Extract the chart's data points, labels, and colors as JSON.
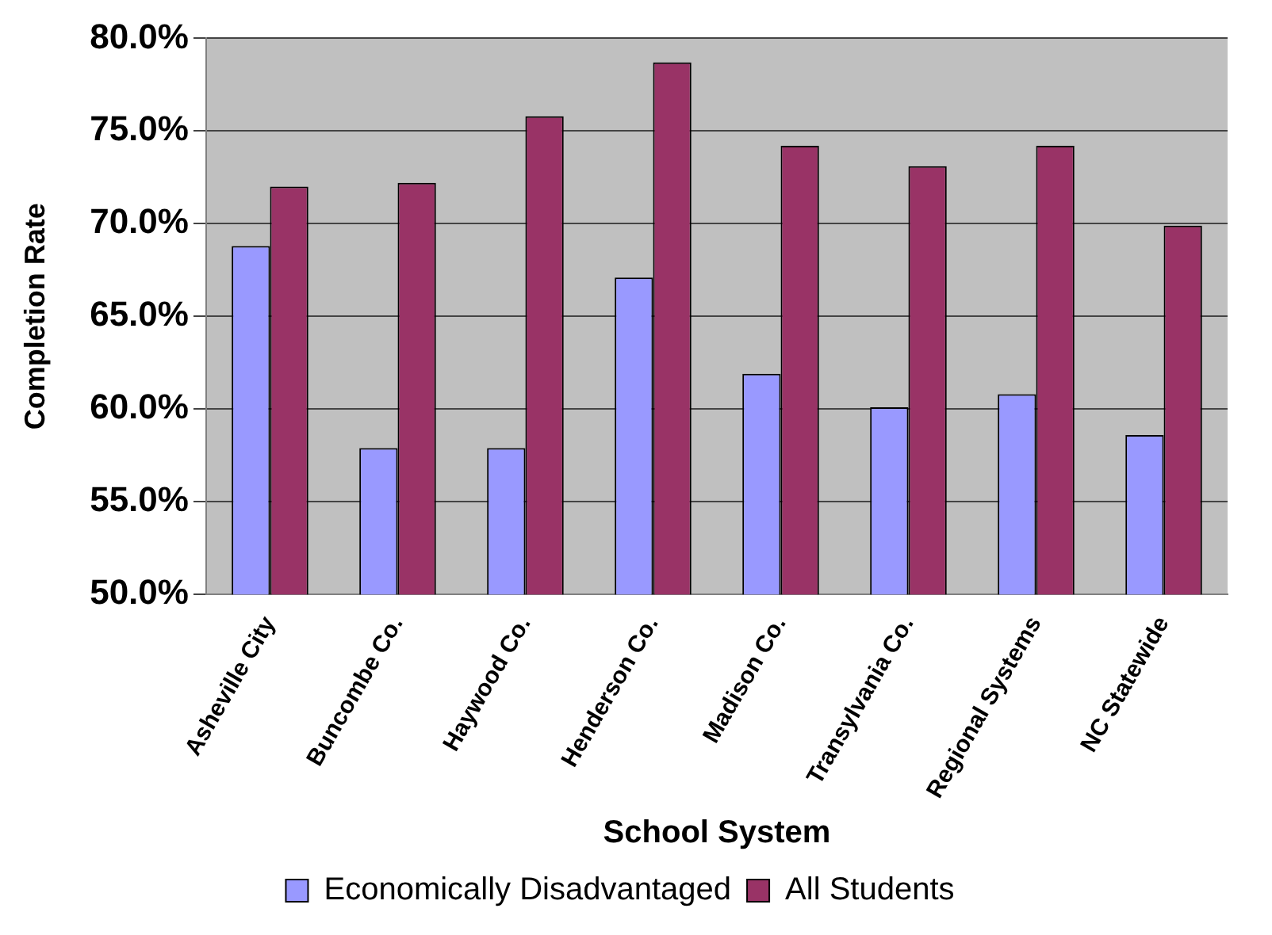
{
  "chart_data": {
    "type": "bar",
    "xlabel": "School System",
    "ylabel": "Completion Rate",
    "categories": [
      "Asheville City",
      "Buncombe Co.",
      "Haywood Co.",
      "Henderson Co.",
      "Madison Co.",
      "Transylvania Co.",
      "Regional Systems",
      "NC Statewide"
    ],
    "series": [
      {
        "name": "Economically Disadvantaged",
        "color": "#9999ff",
        "values": [
          68.8,
          57.9,
          57.9,
          67.1,
          61.9,
          60.1,
          60.8,
          58.6
        ]
      },
      {
        "name": "All Students",
        "color": "#993366",
        "values": [
          72.0,
          72.2,
          75.8,
          78.7,
          74.2,
          73.1,
          74.2,
          69.9
        ]
      }
    ],
    "ylim": [
      50,
      80
    ],
    "yticks": [
      {
        "value": 50,
        "label": "50.0%"
      },
      {
        "value": 55,
        "label": "55.0%"
      },
      {
        "value": 60,
        "label": "60.0%"
      },
      {
        "value": 65,
        "label": "65.0%"
      },
      {
        "value": 70,
        "label": "70.0%"
      },
      {
        "value": 75,
        "label": "75.0%"
      },
      {
        "value": 80,
        "label": "80.0%"
      }
    ],
    "grid": "y",
    "legend": "bottom"
  }
}
